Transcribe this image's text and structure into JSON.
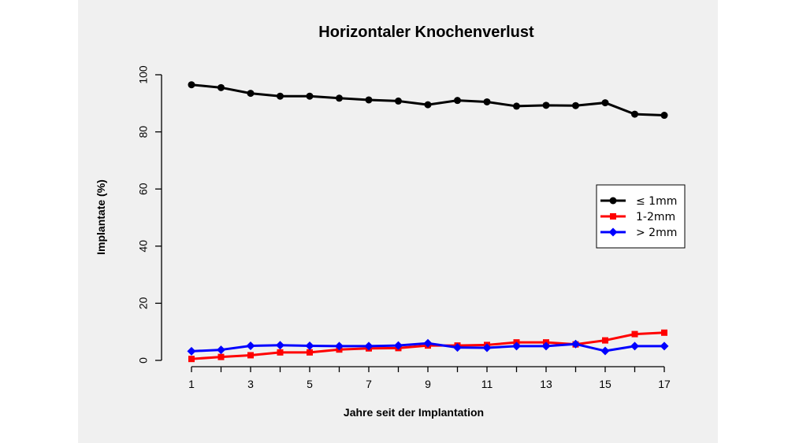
{
  "chart_data": {
    "type": "line",
    "title": "Horizontaler Knochenverlust",
    "xlabel": "Jahre seit der Implantation",
    "ylabel": "Implantate (%)",
    "xlim": [
      1,
      17
    ],
    "ylim": [
      0,
      100
    ],
    "x_ticks": [
      1,
      3,
      5,
      7,
      9,
      11,
      13,
      15,
      17
    ],
    "x_tick_labels": [
      "1",
      "3",
      "5",
      "7",
      "9",
      "11",
      "13",
      "15",
      "17"
    ],
    "y_ticks": [
      0,
      20,
      40,
      60,
      80,
      100
    ],
    "y_tick_labels": [
      "0",
      "20",
      "40",
      "60",
      "80",
      "100"
    ],
    "grid": false,
    "legend_position": "right",
    "x": [
      1,
      2,
      3,
      4,
      5,
      6,
      7,
      8,
      9,
      10,
      11,
      12,
      13,
      14,
      15,
      16,
      17
    ],
    "series": [
      {
        "name": "≤ 1mm",
        "color": "#000000",
        "marker": "circle",
        "values": [
          96.5,
          95.5,
          93.5,
          92.5,
          92.5,
          91.8,
          91.2,
          90.8,
          89.5,
          91.0,
          90.5,
          89.0,
          89.3,
          89.2,
          90.2,
          86.2,
          85.8
        ]
      },
      {
        "name": "1-2mm",
        "color": "#ff0000",
        "marker": "square",
        "values": [
          0.5,
          1.2,
          1.8,
          2.8,
          2.8,
          3.8,
          4.2,
          4.3,
          5.2,
          5.2,
          5.4,
          6.3,
          6.3,
          5.6,
          7.0,
          9.2,
          9.7
        ]
      },
      {
        "name": "> 2mm",
        "color": "#0000ff",
        "marker": "diamond",
        "values": [
          3.2,
          3.7,
          5.1,
          5.3,
          5.1,
          5.0,
          5.0,
          5.2,
          6.0,
          4.5,
          4.4,
          5.0,
          5.0,
          5.7,
          3.3,
          5.0,
          5.0
        ]
      }
    ]
  }
}
